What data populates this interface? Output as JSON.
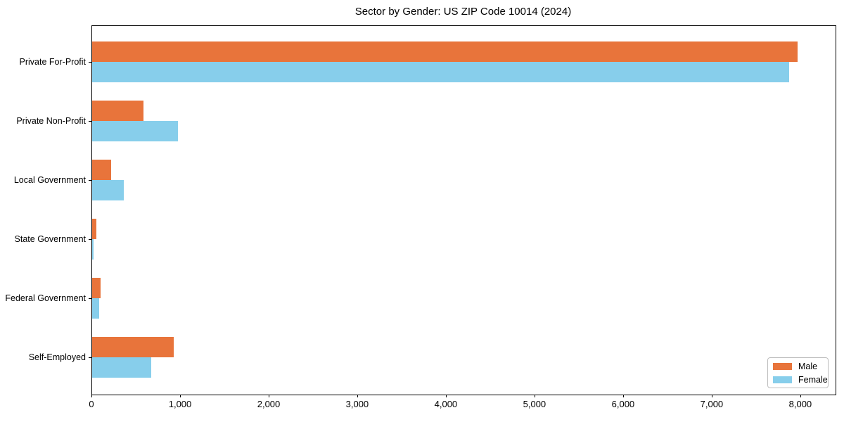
{
  "title": "Sector by Gender: US ZIP Code 10014 (2024)",
  "chart_data": {
    "type": "bar",
    "orientation": "horizontal",
    "title": "Sector by Gender: US ZIP Code 10014 (2024)",
    "categories": [
      "Private For-Profit",
      "Private Non-Profit",
      "Local Government",
      "State Government",
      "Federal Government",
      "Self-Employed"
    ],
    "series": [
      {
        "name": "Male",
        "color": "#E8743B",
        "values": [
          7970,
          585,
          225,
          55,
          100,
          930
        ]
      },
      {
        "name": "Female",
        "color": "#87CEEB",
        "values": [
          7870,
          975,
          365,
          25,
          90,
          675
        ]
      }
    ],
    "xlabel": "",
    "ylabel": "",
    "xlim": [
      0,
      8390
    ],
    "xticks": [
      0,
      1000,
      2000,
      3000,
      4000,
      5000,
      6000,
      7000,
      8000
    ],
    "xtick_labels": [
      "0",
      "1,000",
      "2,000",
      "3,000",
      "4,000",
      "5,000",
      "6,000",
      "7,000",
      "8,000"
    ],
    "grid": false,
    "legend": {
      "location": "lower right",
      "entries": [
        "Male",
        "Female"
      ]
    }
  },
  "colors": {
    "male": "#E8743B",
    "female": "#87CEEB",
    "frame": "#000000",
    "text": "#000000",
    "background": "#FFFFFF",
    "legend_border": "#BDBDBD"
  }
}
